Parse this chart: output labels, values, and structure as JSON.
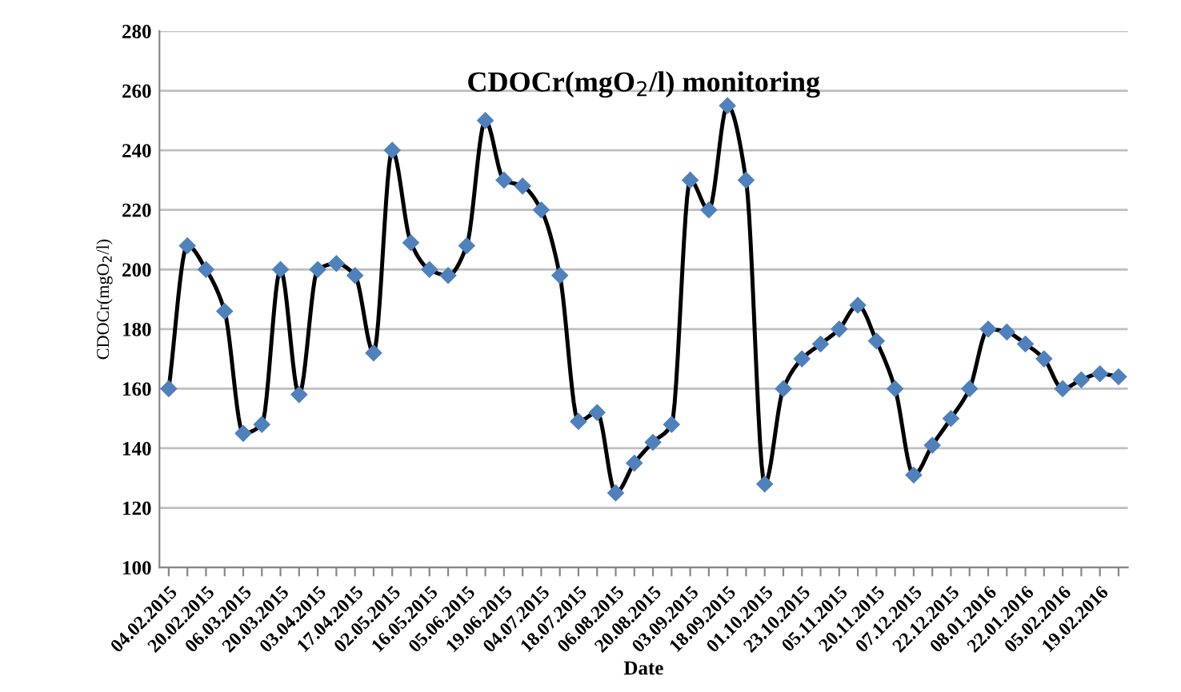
{
  "chart_data": {
    "type": "line",
    "title": "CDOCr(mgO$_{2}$/l) monitoring",
    "xlabel": "Date",
    "ylabel": "CDOCr(mgO$_{2}$/l)",
    "categories": [
      "04.02.2015",
      null,
      "20.02.2015",
      null,
      "06.03.2015",
      null,
      "20.03.2015",
      null,
      "03.04.2015",
      null,
      "17.04.2015",
      null,
      "02.05.2015",
      null,
      "16.05.2015",
      null,
      "05.06.2015",
      null,
      "19.06.2015",
      null,
      "04.07.2015",
      null,
      "18.07.2015",
      null,
      "06.08.2015",
      null,
      "20.08.2015",
      null,
      "03.09.2015",
      null,
      "18.09.2015",
      null,
      "01.10.2015",
      null,
      "23.10.2015",
      null,
      "05.11.2015",
      null,
      "20.11.2015",
      null,
      "07.12.2015",
      null,
      "22.12.2015",
      null,
      "08.01.2016",
      null,
      "22.01.2016",
      null,
      "05.02.2016",
      null,
      "19.02.2016",
      null
    ],
    "series": [
      {
        "color": "#4f81bd",
        "values": [
          160,
          208,
          200,
          186,
          145,
          148,
          200,
          158,
          200,
          202,
          198,
          172,
          240,
          209,
          200,
          198,
          208,
          250,
          230,
          228,
          220,
          198,
          149,
          152,
          125,
          135,
          142,
          148,
          230,
          220,
          255,
          230,
          128,
          160,
          170,
          175,
          180,
          188,
          176,
          160,
          131,
          141,
          150,
          160,
          180,
          179,
          175,
          170,
          160,
          163,
          165,
          164
        ]
      }
    ],
    "ylim": [
      100,
      280
    ],
    "yticks": [
      100,
      120,
      140,
      160,
      180,
      200,
      220,
      240,
      260,
      280
    ],
    "grid": "y",
    "marker": "diamond",
    "line_style": "solid",
    "legend": false
  }
}
